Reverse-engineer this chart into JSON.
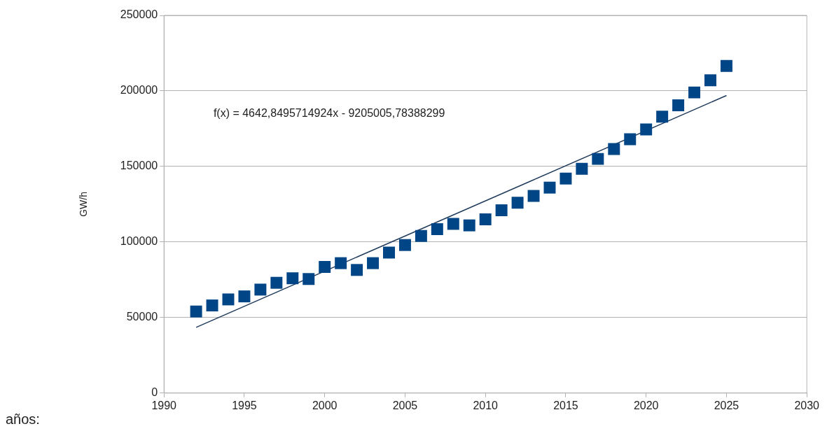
{
  "chart_data": {
    "type": "scatter",
    "ylabel": "GW/h",
    "annotations": [
      "f(x) = 4642,8495714924x - 9205005,78388299",
      "años:"
    ],
    "x": [
      1992,
      1993,
      1994,
      1995,
      1996,
      1997,
      1998,
      1999,
      2000,
      2001,
      2002,
      2003,
      2004,
      2005,
      2006,
      2007,
      2008,
      2009,
      2010,
      2011,
      2012,
      2013,
      2014,
      2015,
      2016,
      2017,
      2018,
      2019,
      2020,
      2021,
      2022,
      2023,
      2024,
      2025
    ],
    "series": [
      {
        "type": "scatter",
        "color": "#004586",
        "marker": "square",
        "values": [
          54000,
          58000,
          62000,
          64000,
          68500,
          73000,
          76000,
          75500,
          83500,
          86000,
          81500,
          86000,
          93000,
          98000,
          104000,
          108500,
          112000,
          111000,
          115000,
          121000,
          126000,
          130500,
          136000,
          142000,
          148500,
          155000,
          161500,
          168000,
          174500,
          183000,
          190500,
          199000,
          207000,
          216500
        ]
      },
      {
        "type": "line",
        "color": "#1f3b5c",
        "marker": "none",
        "line_style": "solid",
        "x": [
          1992,
          2025
        ],
        "values": [
          43500,
          197000
        ]
      }
    ],
    "xlim": [
      1990,
      2030
    ],
    "xticks": [
      1990,
      1995,
      2000,
      2005,
      2010,
      2015,
      2020,
      2025,
      2030
    ],
    "ylim": [
      0,
      250000
    ],
    "yticks": [
      0,
      50000,
      100000,
      150000,
      200000,
      250000
    ],
    "grid": "y",
    "legend": false
  }
}
